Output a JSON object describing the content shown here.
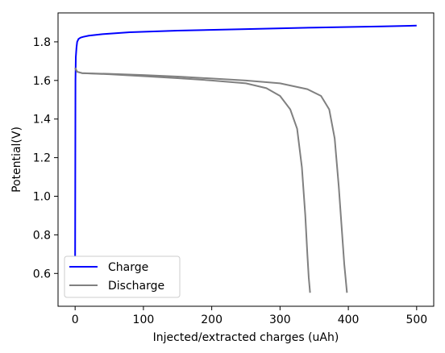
{
  "chart_data": {
    "type": "line",
    "title": "",
    "xlabel": "Injected/extracted charges (uAh)",
    "ylabel": "Potential(V)",
    "xlim": [
      -25,
      525
    ],
    "ylim": [
      0.43,
      1.95
    ],
    "xticks": [
      0,
      100,
      200,
      300,
      400,
      500
    ],
    "yticks": [
      0.6,
      0.8,
      1.0,
      1.2,
      1.4,
      1.6,
      1.8
    ],
    "xtick_labels": [
      "0",
      "100",
      "200",
      "300",
      "400",
      "500"
    ],
    "ytick_labels": [
      "0.6",
      "0.8",
      "1.0",
      "1.2",
      "1.4",
      "1.6",
      "1.8"
    ],
    "grid": false,
    "legend_position": "lower-left",
    "legend": [
      "Charge",
      "Discharge"
    ],
    "colors": {
      "Charge": "#0000ff",
      "Discharge": "#808080"
    },
    "series": [
      {
        "name": "Charge",
        "color": "#0000ff",
        "x": [
          0,
          0.2,
          0.5,
          1,
          2,
          3,
          5,
          8,
          12,
          20,
          40,
          80,
          150,
          250,
          350,
          450,
          500
        ],
        "y": [
          0.69,
          1.05,
          1.6,
          1.72,
          1.77,
          1.8,
          1.815,
          1.822,
          1.826,
          1.832,
          1.84,
          1.85,
          1.858,
          1.866,
          1.874,
          1.88,
          1.884
        ]
      },
      {
        "name": "Discharge",
        "color": "#808080",
        "x": [
          0,
          3,
          10,
          50,
          100,
          150,
          200,
          250,
          280,
          300,
          315,
          325,
          332,
          337,
          340,
          342,
          344
        ],
        "y": [
          1.665,
          1.645,
          1.638,
          1.632,
          1.622,
          1.612,
          1.6,
          1.585,
          1.56,
          1.52,
          1.45,
          1.35,
          1.15,
          0.9,
          0.7,
          0.58,
          0.5
        ]
      },
      {
        "name": "",
        "color": "#808080",
        "x": [
          0,
          3,
          10,
          50,
          100,
          150,
          200,
          250,
          300,
          340,
          360,
          372,
          380,
          386,
          390,
          394,
          398
        ],
        "y": [
          1.665,
          1.645,
          1.638,
          1.634,
          1.628,
          1.62,
          1.61,
          1.6,
          1.585,
          1.555,
          1.52,
          1.45,
          1.3,
          1.05,
          0.85,
          0.65,
          0.5
        ]
      }
    ]
  }
}
